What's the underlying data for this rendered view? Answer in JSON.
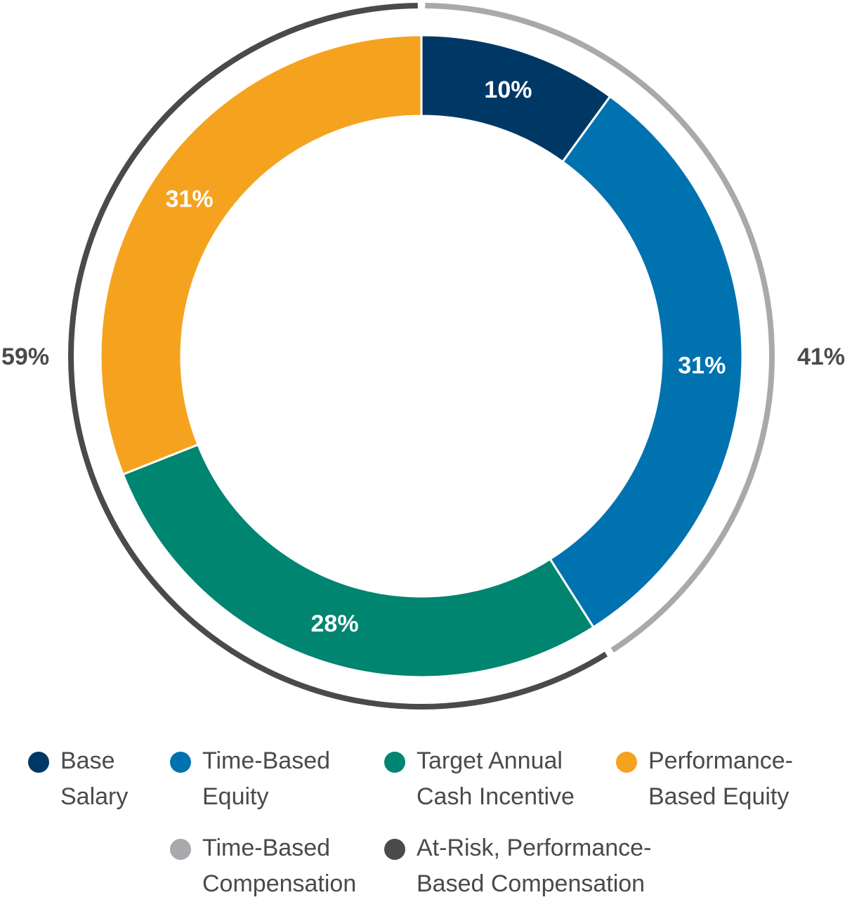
{
  "chart_data": {
    "type": "pie",
    "title": "",
    "inner_ring": [
      {
        "name": "Base Salary",
        "value": 10,
        "label": "10%",
        "color": "#003865"
      },
      {
        "name": "Time-Based Equity",
        "value": 31,
        "label": "31%",
        "color": "#0072b0"
      },
      {
        "name": "Target Annual Cash Incentive",
        "value": 28,
        "label": "28%",
        "color": "#008570"
      },
      {
        "name": "Performance-Based Equity",
        "value": 31,
        "label": "31%",
        "color": "#f5a31f"
      }
    ],
    "outer_ring": [
      {
        "name": "Time-Based Compensation",
        "value": 41,
        "label": "41%",
        "color": "#a7a9ac"
      },
      {
        "name": "At-Risk, Performance-Based Compensation",
        "value": 59,
        "label": "59%",
        "color": "#4a4a4a"
      }
    ],
    "legend_placement": "bottom"
  },
  "legend": {
    "row1": [
      {
        "text": "Base\nSalary",
        "color": "#003865",
        "icon": "circle"
      },
      {
        "text": "Time-Based\nEquity",
        "color": "#0072b0",
        "icon": "circle"
      },
      {
        "text": "Target Annual\nCash Incentive",
        "color": "#008570",
        "icon": "circle"
      },
      {
        "text": "Performance-\nBased Equity",
        "color": "#f5a31f",
        "icon": "circle"
      }
    ],
    "row2": [
      {
        "text": "Time-Based\nCompensation",
        "color": "#a7a9ac",
        "icon": "circle"
      },
      {
        "text": "At-Risk, Performance-\nBased Compensation",
        "color": "#4a4a4a",
        "icon": "circle"
      }
    ]
  }
}
